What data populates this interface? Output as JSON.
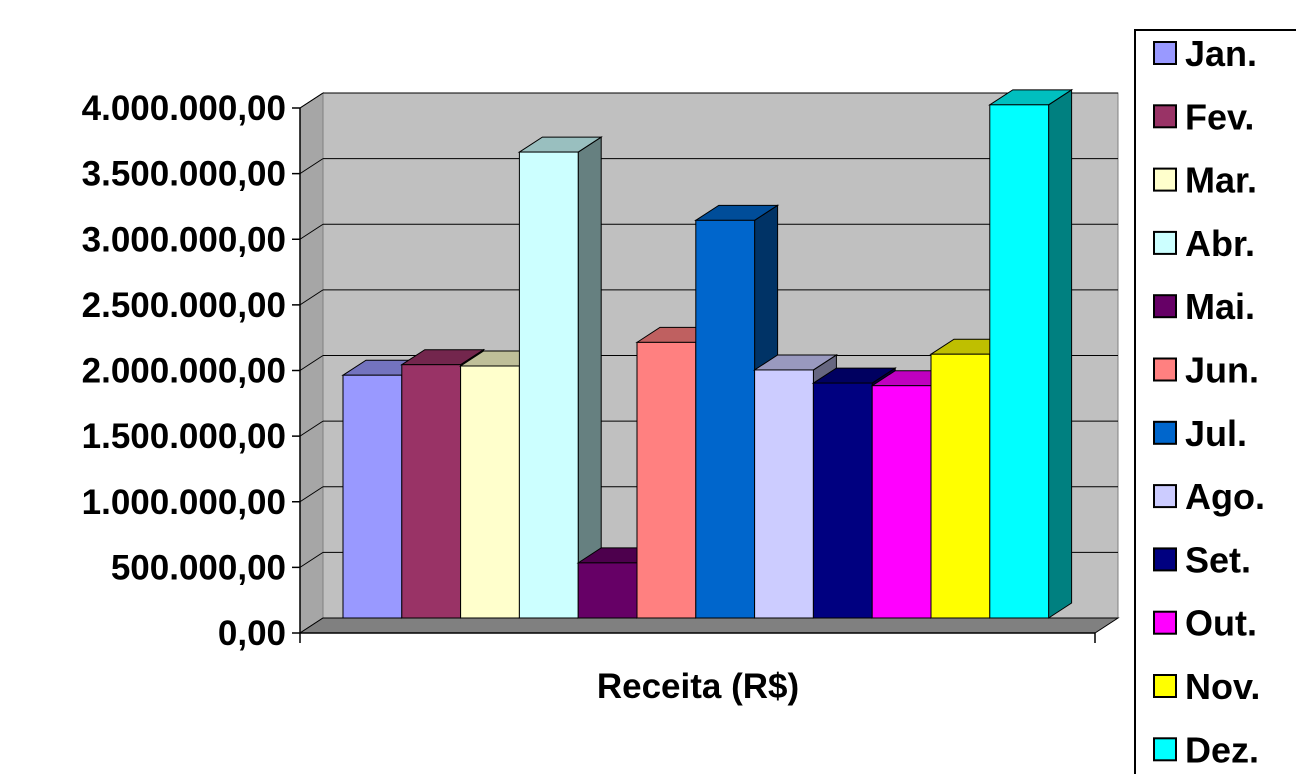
{
  "chart_data": {
    "type": "bar",
    "style": "3d-clustered-column",
    "title": "",
    "xlabel": "Receita (R$)",
    "ylabel": "",
    "category": "Receita (R$)",
    "ylim": [
      0,
      4000000
    ],
    "ytick_step": 500000,
    "yticks": [
      "0,00",
      "500.000,00",
      "1.000.000,00",
      "1.500.000,00",
      "2.000.000,00",
      "2.500.000,00",
      "3.000.000,00",
      "3.500.000,00",
      "4.000.000,00"
    ],
    "grid": true,
    "legend_position": "right",
    "series": [
      {
        "name": "Jan.",
        "value": 1850000,
        "color": "#9999FF"
      },
      {
        "name": "Fev.",
        "value": 1930000,
        "color": "#993366"
      },
      {
        "name": "Mar.",
        "value": 1920000,
        "color": "#FFFFCC"
      },
      {
        "name": "Abr.",
        "value": 3550000,
        "color": "#CCFFFF"
      },
      {
        "name": "Mai.",
        "value": 420000,
        "color": "#660066"
      },
      {
        "name": "Jun.",
        "value": 2100000,
        "color": "#FF8080"
      },
      {
        "name": "Jul.",
        "value": 3030000,
        "color": "#0066CC"
      },
      {
        "name": "Ago.",
        "value": 1890000,
        "color": "#CCCCFF"
      },
      {
        "name": "Set.",
        "value": 1790000,
        "color": "#000080"
      },
      {
        "name": "Out.",
        "value": 1770000,
        "color": "#FF00FF"
      },
      {
        "name": "Nov.",
        "value": 2010000,
        "color": "#FFFF00"
      },
      {
        "name": "Dez.",
        "value": 3910000,
        "color": "#00FFFF"
      }
    ]
  }
}
